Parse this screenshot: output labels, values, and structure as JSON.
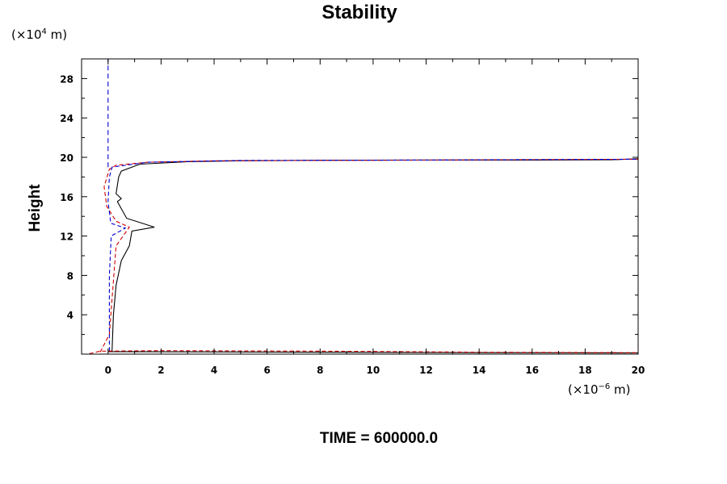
{
  "chart_data": {
    "type": "line",
    "title": "Stability",
    "ylabel": "Height",
    "y_unit": {
      "prefix": "(×10",
      "exp": "4",
      "suffix": " m)"
    },
    "x_unit": {
      "prefix": "(×10",
      "exp": "−6",
      "suffix": " m)"
    },
    "footer": "TIME = 600000.0",
    "xlim": [
      -1,
      20
    ],
    "ylim": [
      0,
      30
    ],
    "x_ticks": [
      0,
      2,
      4,
      6,
      8,
      10,
      12,
      14,
      16,
      18,
      20
    ],
    "y_ticks": [
      4,
      8,
      12,
      16,
      20,
      24,
      28
    ],
    "series": [
      {
        "name": "solid-black",
        "color": "#000000",
        "dash": "none",
        "x": [
          0.15,
          0.2,
          0.3,
          0.5,
          0.8,
          0.9,
          1.75,
          0.7,
          0.35,
          0.5,
          0.3,
          0.4,
          0.5,
          1.2,
          3,
          5,
          8,
          12,
          16,
          19,
          20
        ],
        "y": [
          0.3,
          4,
          7,
          9.5,
          11,
          12.5,
          12.9,
          13.8,
          15.5,
          15.8,
          16.3,
          18,
          18.6,
          19.3,
          19.55,
          19.65,
          19.7,
          19.72,
          19.72,
          19.75,
          19.85
        ]
      },
      {
        "name": "dashed-red",
        "color": "#d00000",
        "dash": "5,3",
        "x": [
          -0.3,
          0.05,
          0.3,
          0.8,
          0.3,
          -0.05,
          -0.15,
          0.05,
          0.3,
          1.5,
          4,
          10,
          20
        ],
        "y": [
          0.2,
          2,
          11,
          12.9,
          13.5,
          15,
          17,
          18.8,
          19.2,
          19.5,
          19.65,
          19.7,
          19.8
        ]
      },
      {
        "name": "dashed-blue",
        "color": "#0000d0",
        "dash": "5,3",
        "x": [
          0.05,
          0.05,
          0.12,
          0.65,
          0.1,
          0.0,
          0.05,
          0.15,
          1.5,
          5,
          12,
          20
        ],
        "y": [
          0.3,
          8,
          12,
          12.8,
          13.3,
          15.5,
          18,
          19,
          19.5,
          19.68,
          19.72,
          19.8
        ]
      },
      {
        "name": "dashed-blue-vertical",
        "color": "#0000d0",
        "dash": "6,4",
        "x": [
          0.0,
          0.0
        ],
        "y": [
          19.0,
          30
        ]
      },
      {
        "name": "bottom-black",
        "color": "#000000",
        "dash": "none",
        "x": [
          0.0,
          5,
          10,
          15,
          20
        ],
        "y": [
          0.25,
          0.22,
          0.18,
          0.15,
          0.12
        ]
      },
      {
        "name": "bottom-red",
        "color": "#d00000",
        "dash": "5,3",
        "x": [
          -0.7,
          -0.3,
          2,
          8,
          14,
          20
        ],
        "y": [
          0.05,
          0.3,
          0.35,
          0.3,
          0.2,
          0.15
        ]
      }
    ]
  }
}
